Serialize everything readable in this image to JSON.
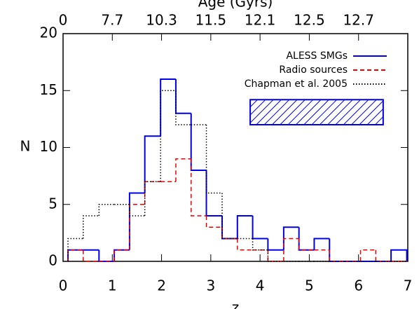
{
  "chart_data": {
    "type": "histogram",
    "xlabel": "z",
    "ylabel": "N",
    "top_xlabel": "Age (Gyrs)",
    "bins": [
      0.1,
      0.41,
      0.73,
      1.04,
      1.35,
      1.66,
      1.98,
      2.29,
      2.6,
      2.91,
      3.23,
      3.54,
      3.85,
      4.16,
      4.48,
      4.79,
      5.1,
      5.41,
      5.73,
      6.04,
      6.35,
      6.66,
      6.98
    ],
    "series": [
      {
        "name": "ALESS SMGs",
        "color": "#0000ee",
        "dash": "solid",
        "values": [
          1,
          1,
          0,
          1,
          6,
          11,
          16,
          13,
          8,
          4,
          2,
          4,
          2,
          1,
          3,
          1,
          2,
          0,
          0,
          0,
          0,
          1
        ]
      },
      {
        "name": "Radio sources",
        "color": "#ee0000",
        "dash": "dashed",
        "values": [
          1,
          0,
          0,
          1,
          5,
          7,
          7,
          9,
          4,
          3,
          2,
          1,
          1,
          0,
          2,
          1,
          1,
          0,
          0,
          1,
          0,
          0
        ]
      },
      {
        "name": "Chapman et al. 2005",
        "color": "#000000",
        "dash": "dotted",
        "values": [
          2,
          4,
          5,
          5,
          4,
          7,
          15,
          12,
          12,
          6,
          2,
          2,
          1,
          0,
          0,
          0,
          0,
          0,
          0,
          0,
          0,
          0
        ]
      }
    ],
    "error_box": {
      "x": [
        3.8,
        6.5
      ],
      "y": [
        12,
        14.2
      ],
      "color": "#0000ee"
    },
    "xlim": [
      0,
      7
    ],
    "xticks": [
      0,
      1,
      2,
      3,
      4,
      5,
      6,
      7
    ],
    "ylim": [
      0,
      20
    ],
    "yticks": [
      0,
      5,
      10,
      15,
      20
    ],
    "top_xticks": [
      {
        "value": 0,
        "label": "0"
      },
      {
        "value": 1,
        "label": "7.7"
      },
      {
        "value": 2,
        "label": "10.3"
      },
      {
        "value": 3,
        "label": "11.5"
      },
      {
        "value": 4,
        "label": "12.1"
      },
      {
        "value": 5,
        "label": "12.5"
      },
      {
        "value": 6,
        "label": "12.7"
      }
    ],
    "legend": "upper right"
  }
}
